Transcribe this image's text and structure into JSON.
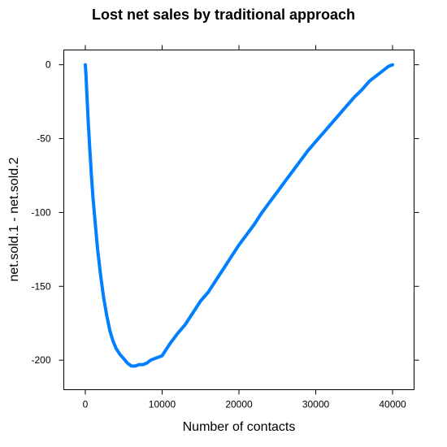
{
  "chart_data": {
    "type": "line",
    "title": "Lost net sales by traditional approach",
    "xlabel": "Number of contacts",
    "ylabel": "net.sold.1 - net.sold.2",
    "xlim": [
      -2800,
      42800
    ],
    "ylim": [
      -220,
      10
    ],
    "xticks": [
      0,
      10000,
      20000,
      30000,
      40000
    ],
    "yticks": [
      0,
      -50,
      -100,
      -150,
      -200
    ],
    "line_color": "#0080ff",
    "grid": false,
    "series": [
      {
        "x": [
          0,
          100,
          200,
          400,
          600,
          800,
          1000,
          1300,
          1600,
          2000,
          2400,
          2800,
          3200,
          3600,
          4000,
          4500,
          5000,
          5500,
          6000,
          6500,
          7000,
          7500,
          8000,
          8500,
          9000,
          9500,
          10000,
          10500,
          11000,
          12000,
          13000,
          14000,
          15000,
          16000,
          17000,
          18000,
          19000,
          20000,
          21000,
          22000,
          23000,
          24000,
          25000,
          26000,
          27000,
          28000,
          29000,
          30000,
          31000,
          32000,
          33000,
          34000,
          35000,
          36000,
          37000,
          38000,
          39000,
          39500,
          40000
        ],
        "y": [
          0,
          -8,
          -20,
          -40,
          -58,
          -75,
          -90,
          -108,
          -125,
          -143,
          -158,
          -170,
          -180,
          -187,
          -192,
          -196,
          -199,
          -202,
          -204,
          -204,
          -203,
          -203,
          -202,
          -200,
          -199,
          -198,
          -197,
          -193,
          -189,
          -182,
          -176,
          -168,
          -160,
          -154,
          -146,
          -138,
          -130,
          -122,
          -115,
          -108,
          -100,
          -93,
          -86,
          -79,
          -72,
          -65,
          -58,
          -52,
          -46,
          -40,
          -34,
          -28,
          -22,
          -17,
          -11,
          -7,
          -3,
          -1,
          0
        ]
      }
    ]
  }
}
